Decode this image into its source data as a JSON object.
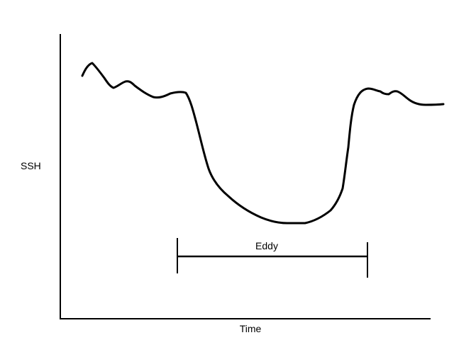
{
  "labels": {
    "y_axis": "SSH",
    "x_axis": "Time",
    "span": "Eddy"
  },
  "colors": {
    "ink": "#000000",
    "background": "#ffffff"
  }
}
